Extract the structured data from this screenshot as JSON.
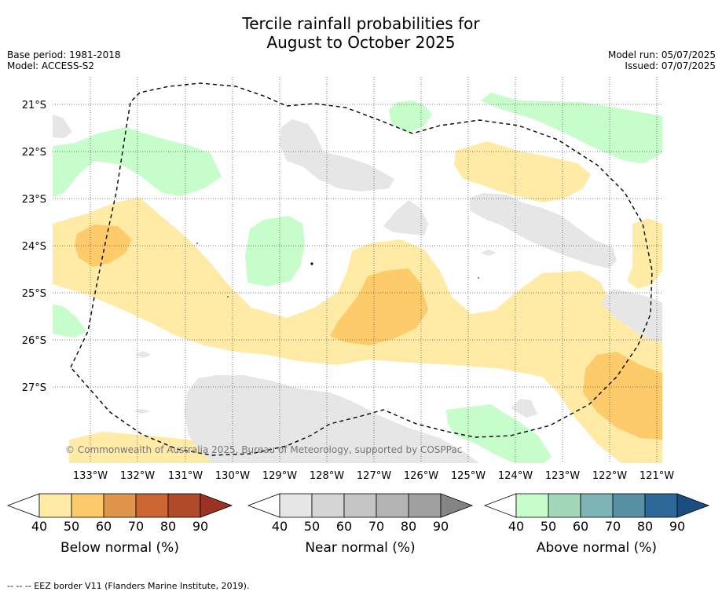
{
  "title_line1": "Tercile rainfall probabilities for",
  "title_line2": "August to October 2025",
  "base_period": "Base period: 1981-2018",
  "model": "Model: ACCESS-S2",
  "model_run": "Model run: 05/07/2025",
  "issued": "Issued: 07/07/2025",
  "copyright": "© Commonwealth of Australia 2025, Bureau of Meteorology, supported by COSPPac",
  "footer": "--  --  -- EEZ border V11 (Flanders Marine Institute, 2019).",
  "map": {
    "lon_labels": [
      "133°W",
      "132°W",
      "131°W",
      "130°W",
      "129°W",
      "128°W",
      "127°W",
      "126°W",
      "125°W",
      "124°W",
      "123°W",
      "122°W",
      "121°W"
    ],
    "lat_labels": [
      "21°S",
      "22°S",
      "23°S",
      "24°S",
      "25°S",
      "26°S",
      "27°S"
    ]
  },
  "legends": [
    {
      "label": "Below normal (%)",
      "ticks": [
        "40",
        "50",
        "60",
        "70",
        "80",
        "90"
      ],
      "colors": [
        "#ffeba6",
        "#fdcb6a",
        "#e0964a",
        "#cd6433",
        "#b04a29",
        "#9a3323"
      ]
    },
    {
      "label": "Near normal (%)",
      "ticks": [
        "40",
        "50",
        "60",
        "70",
        "80",
        "90"
      ],
      "colors": [
        "#e6e6e6",
        "#d5d5d5",
        "#c5c5c5",
        "#b4b4b4",
        "#a0a0a0",
        "#848484"
      ]
    },
    {
      "label": "Above normal (%)",
      "ticks": [
        "40",
        "50",
        "60",
        "70",
        "80",
        "90"
      ],
      "colors": [
        "#c6fdcb",
        "#a2d7ba",
        "#7eb4b4",
        "#5891a3",
        "#2e6898",
        "#1b4d80"
      ]
    }
  ]
}
